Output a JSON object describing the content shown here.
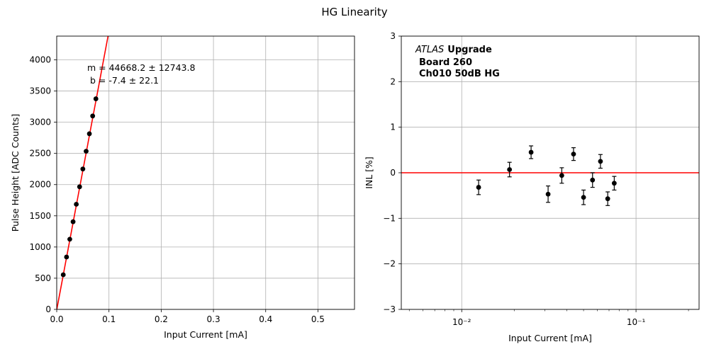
{
  "figure": {
    "suptitle": "HG Linearity"
  },
  "chart_data": [
    {
      "type": "scatter",
      "title": "",
      "xlabel": "Input Current [mA]",
      "ylabel": "Pulse Height [ADC Counts]",
      "xlim": [
        0,
        0.57
      ],
      "ylim": [
        0,
        4380
      ],
      "xticks": [
        0.0,
        0.1,
        0.2,
        0.3,
        0.4,
        0.5
      ],
      "xtick_labels": [
        "0.0",
        "0.1",
        "0.2",
        "0.3",
        "0.4",
        "0.5"
      ],
      "yticks": [
        0,
        500,
        1000,
        1500,
        2000,
        2500,
        3000,
        3500,
        4000
      ],
      "ytick_labels": [
        "0",
        "500",
        "1000",
        "1500",
        "2000",
        "2500",
        "3000",
        "3500",
        "4000"
      ],
      "grid": true,
      "series": [
        {
          "kind": "points",
          "color": "#000000",
          "x": [
            0.0125,
            0.0188,
            0.025,
            0.0313,
            0.0375,
            0.0438,
            0.05,
            0.0563,
            0.0625,
            0.0688,
            0.075
          ],
          "y": [
            555,
            840,
            1125,
            1405,
            1685,
            1965,
            2250,
            2535,
            2815,
            3100,
            3375
          ]
        },
        {
          "kind": "fit_line",
          "color": "#ff0000",
          "slope": 44668.2,
          "intercept": -7.4
        }
      ],
      "annotations": [
        "m = 44668.2 ± 12743.8",
        "b = -7.4 ± 22.1"
      ]
    },
    {
      "type": "scatter",
      "title": "",
      "xlabel": "Input Current [mA]",
      "ylabel": "INL [%]",
      "xscale": "log",
      "xlim": [
        0.0045,
        0.23
      ],
      "ylim": [
        -3,
        3
      ],
      "xticks": [
        0.01,
        0.1
      ],
      "xtick_labels": [
        "10⁻²",
        "10⁻¹"
      ],
      "yticks": [
        -3,
        -2,
        -1,
        0,
        1,
        2,
        3
      ],
      "ytick_labels": [
        "−3",
        "−2",
        "−1",
        "0",
        "1",
        "2",
        "3"
      ],
      "grid": true,
      "series": [
        {
          "kind": "errorbar_points",
          "color": "#000000",
          "x": [
            0.0125,
            0.0188,
            0.025,
            0.0313,
            0.0375,
            0.0438,
            0.05,
            0.0563,
            0.0625,
            0.0688,
            0.075
          ],
          "y": [
            -0.32,
            0.07,
            0.45,
            -0.47,
            -0.06,
            0.41,
            -0.54,
            -0.16,
            0.25,
            -0.57,
            -0.23
          ],
          "yerr": [
            0.16,
            0.16,
            0.14,
            0.18,
            0.17,
            0.14,
            0.16,
            0.16,
            0.15,
            0.15,
            0.15
          ]
        },
        {
          "kind": "hline",
          "color": "#ff0000",
          "y": 0
        }
      ],
      "annotations": {
        "experiment": "ATLAS",
        "tag": "Upgrade",
        "board": "Board 260",
        "channel": "Ch010 50dB HG"
      }
    }
  ]
}
